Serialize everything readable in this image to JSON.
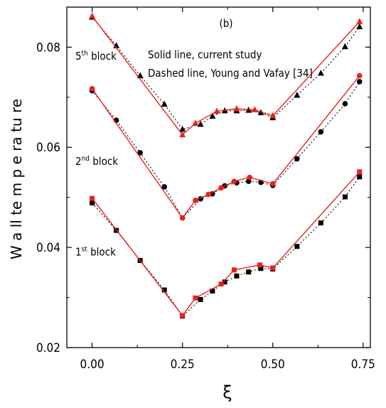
{
  "chart_data": {
    "type": "line",
    "panel_label": "(b)",
    "xlabel": "ξ",
    "ylabel": "W a ll te m p e ra tu re",
    "xlim": [
      -0.07,
      0.77
    ],
    "ylim": [
      0.02,
      0.088
    ],
    "x_ticks": [
      "0.00",
      "0.25",
      "0.50",
      "0.75"
    ],
    "x_tick_values": [
      0.0,
      0.25,
      0.5,
      0.75
    ],
    "y_ticks": [
      "0.02",
      "0.04",
      "0.06",
      "0.08"
    ],
    "y_tick_values": [
      0.02,
      0.04,
      0.06,
      0.08
    ],
    "annotations": {
      "line1": "Solid line, current study",
      "line2": "Dashed line, Young and Vafay [34]"
    },
    "block_labels": [
      {
        "base": "5",
        "sup": "th",
        "text": " block",
        "x": 0.0,
        "y": 0.0775
      },
      {
        "base": "2",
        "sup": "nd",
        "text": " block",
        "x": 0.0,
        "y": 0.0565
      },
      {
        "base": "1",
        "sup": "st",
        "text": " block",
        "x": 0.0,
        "y": 0.0384
      }
    ],
    "series": [
      {
        "name": "1st block, current study",
        "style": "solid",
        "color": "#e8221c",
        "marker": "square",
        "x": [
          0.0,
          0.25,
          0.286,
          0.357,
          0.393,
          0.464,
          0.5,
          0.74
        ],
        "y": [
          0.0498,
          0.0264,
          0.0299,
          0.0327,
          0.0355,
          0.0365,
          0.0359,
          0.0551
        ]
      },
      {
        "name": "1st block, Young and Vafay [34]",
        "style": "dotted",
        "color": "#000000",
        "marker": "square",
        "x": [
          0.0,
          0.067,
          0.133,
          0.2,
          0.25,
          0.3,
          0.333,
          0.367,
          0.4,
          0.433,
          0.467,
          0.5,
          0.567,
          0.633,
          0.7,
          0.74
        ],
        "y": [
          0.0489,
          0.0434,
          0.0374,
          0.0315,
          0.0263,
          0.0296,
          0.0313,
          0.0331,
          0.0343,
          0.0351,
          0.0358,
          0.0357,
          0.0402,
          0.0449,
          0.0501,
          0.0541
        ]
      },
      {
        "name": "2nd block, current study",
        "style": "solid",
        "color": "#e8221c",
        "marker": "circle",
        "x": [
          0.0,
          0.25,
          0.286,
          0.322,
          0.357,
          0.393,
          0.436,
          0.5,
          0.74
        ],
        "y": [
          0.0717,
          0.0459,
          0.0494,
          0.0506,
          0.0519,
          0.0532,
          0.054,
          0.0527,
          0.0743
        ]
      },
      {
        "name": "2nd block, Young and Vafay [34]",
        "style": "dotted",
        "color": "#000000",
        "marker": "circle",
        "x": [
          0.0,
          0.067,
          0.133,
          0.2,
          0.25,
          0.3,
          0.333,
          0.367,
          0.4,
          0.433,
          0.467,
          0.5,
          0.567,
          0.633,
          0.7,
          0.74
        ],
        "y": [
          0.0713,
          0.0654,
          0.0589,
          0.0521,
          0.0459,
          0.0497,
          0.0507,
          0.0523,
          0.0529,
          0.0532,
          0.053,
          0.0524,
          0.0577,
          0.0631,
          0.0687,
          0.0731
        ]
      },
      {
        "name": "5th block, current study",
        "style": "solid",
        "color": "#e8221c",
        "marker": "triangle",
        "x": [
          0.0,
          0.25,
          0.286,
          0.345,
          0.4,
          0.45,
          0.5,
          0.74
        ],
        "y": [
          0.0862,
          0.0625,
          0.0648,
          0.0672,
          0.0677,
          0.0675,
          0.0663,
          0.0851
        ]
      },
      {
        "name": "5th block, Young and Vafay [34]",
        "style": "dotted",
        "color": "#000000",
        "marker": "triangle",
        "x": [
          0.0,
          0.067,
          0.133,
          0.2,
          0.25,
          0.3,
          0.333,
          0.367,
          0.4,
          0.433,
          0.467,
          0.5,
          0.567,
          0.633,
          0.7,
          0.74
        ],
        "y": [
          0.086,
          0.0803,
          0.0743,
          0.0686,
          0.0636,
          0.0646,
          0.0662,
          0.0673,
          0.0673,
          0.0674,
          0.0669,
          0.0659,
          0.0704,
          0.0748,
          0.0801,
          0.0841
        ]
      }
    ]
  }
}
